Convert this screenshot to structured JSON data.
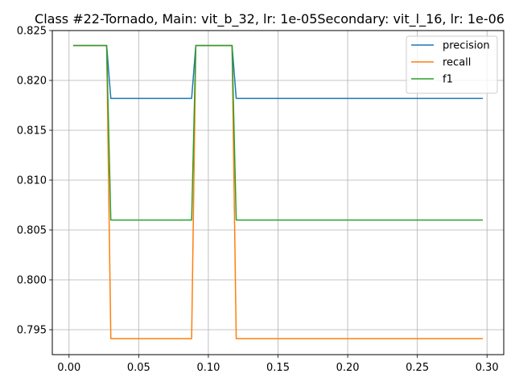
{
  "chart_data": {
    "type": "line",
    "title": "Class #22-Tornado, Main: vit_b_32, lr: 1e-05Secondary: vit_l_16, lr: 1e-06",
    "xlabel": "",
    "ylabel": "",
    "xlim": [
      -0.012,
      0.312
    ],
    "ylim": [
      0.7925,
      0.825
    ],
    "xticks": [
      0.0,
      0.05,
      0.1,
      0.15,
      0.2,
      0.25,
      0.3
    ],
    "xtick_labels": [
      "0.00",
      "0.05",
      "0.10",
      "0.15",
      "0.20",
      "0.25",
      "0.30"
    ],
    "yticks": [
      0.795,
      0.8,
      0.805,
      0.81,
      0.815,
      0.82,
      0.825
    ],
    "ytick_labels": [
      "0.795",
      "0.800",
      "0.805",
      "0.810",
      "0.815",
      "0.820",
      "0.825"
    ],
    "grid": true,
    "legend_position": "top-right",
    "x": [
      0.003,
      0.027,
      0.03,
      0.088,
      0.091,
      0.117,
      0.12,
      0.297
    ],
    "series": [
      {
        "name": "precision",
        "color": "#1f77b4",
        "values": [
          0.8235,
          0.8235,
          0.8182,
          0.8182,
          0.8235,
          0.8235,
          0.8182,
          0.8182
        ]
      },
      {
        "name": "recall",
        "color": "#ff7f0e",
        "values": [
          0.8235,
          0.8235,
          0.7941,
          0.7941,
          0.8235,
          0.8235,
          0.7941,
          0.7941
        ]
      },
      {
        "name": "f1",
        "color": "#2ca02c",
        "values": [
          0.8235,
          0.8235,
          0.806,
          0.806,
          0.8235,
          0.8235,
          0.806,
          0.806
        ]
      }
    ]
  }
}
